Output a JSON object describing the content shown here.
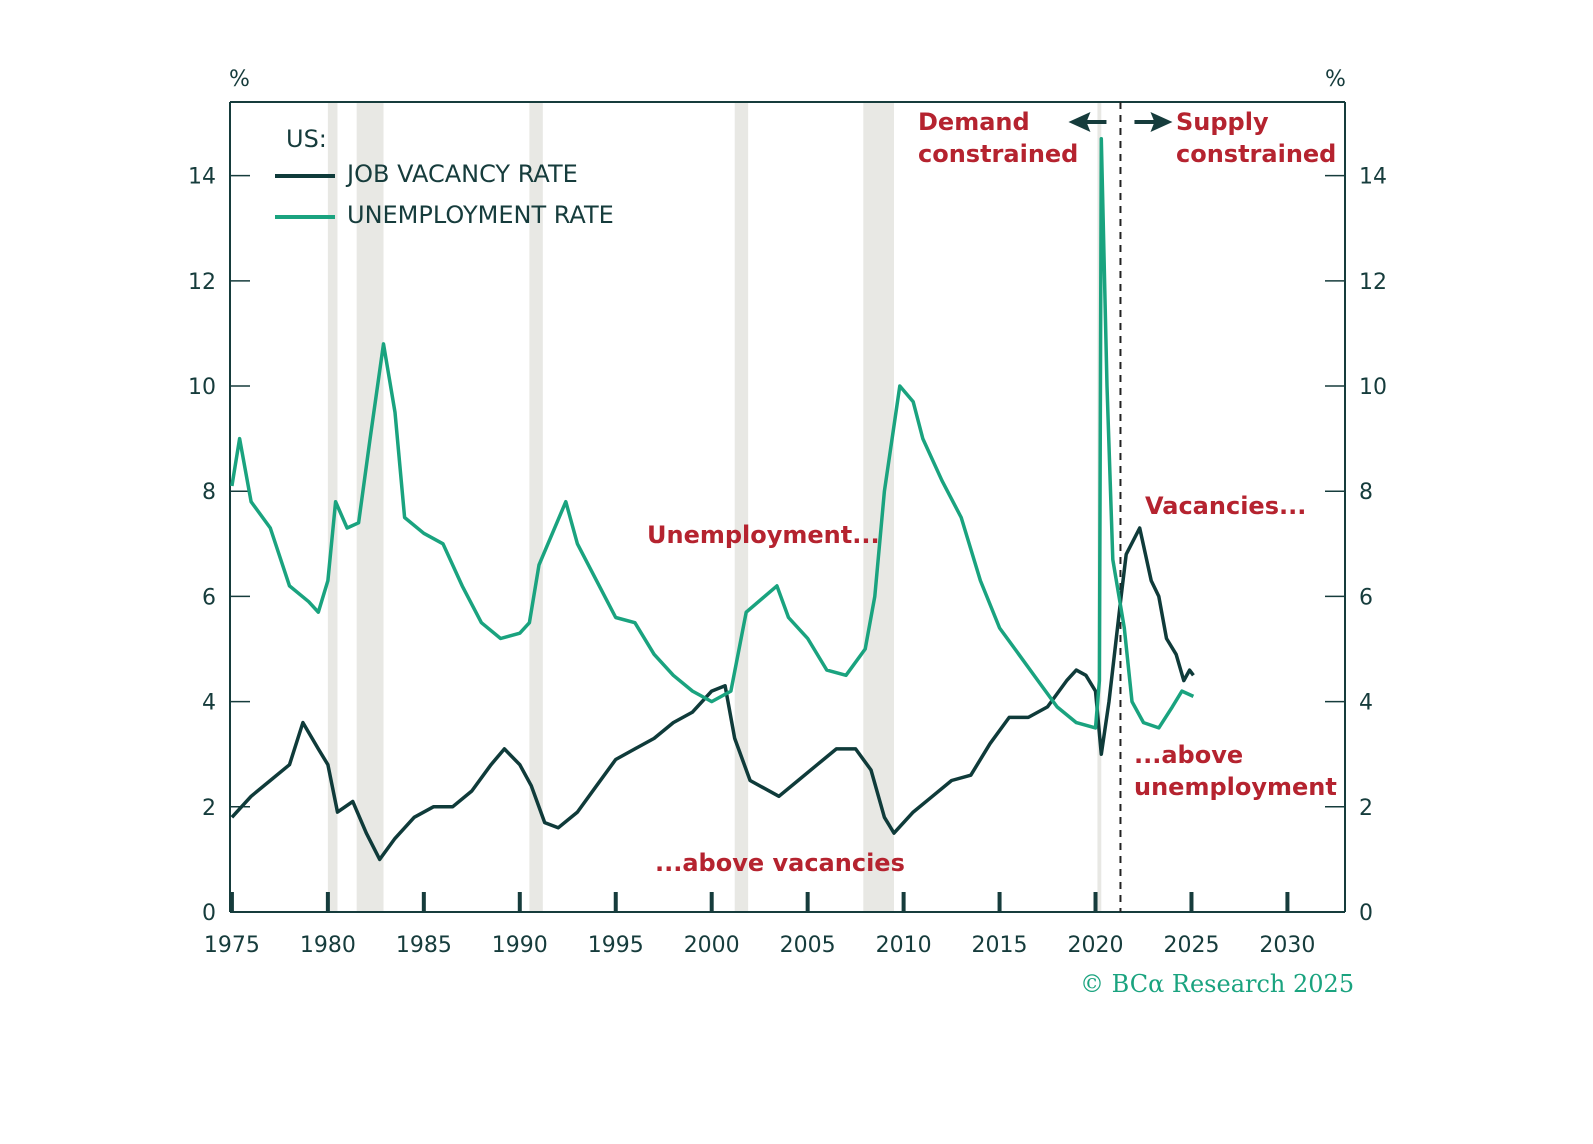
{
  "chart_data": {
    "type": "line",
    "title": "",
    "left_axis_unit": "%",
    "right_axis_unit": "%",
    "xlim": [
      1974.9,
      2033.0
    ],
    "ylim": [
      0,
      15.4
    ],
    "x_ticks": [
      "1975",
      "1980",
      "1985",
      "1990",
      "1995",
      "2000",
      "2005",
      "2010",
      "2015",
      "2020",
      "2025",
      "2030"
    ],
    "y_ticks": [
      "0",
      "2",
      "4",
      "6",
      "8",
      "10",
      "12",
      "14"
    ],
    "grid": false,
    "legend": {
      "title": "US:",
      "placement": "top-left"
    },
    "colors": {
      "vacancy": "#0f3b3a",
      "unemployment": "#1aa37f",
      "annotation": "#b5232f",
      "recession_shading": "#e8e8e4",
      "axis": "#163c3c"
    },
    "recessions": [
      [
        1980.0,
        1980.5
      ],
      [
        1981.5,
        1982.9
      ],
      [
        1990.5,
        1991.2
      ],
      [
        2001.2,
        2001.9
      ],
      [
        2007.9,
        2009.5
      ],
      [
        2020.1,
        2020.3
      ]
    ],
    "regime_divider_year": 2021.3,
    "series": [
      {
        "name": "JOB VACANCY RATE",
        "key": "vacancy",
        "x": [
          1975,
          1976,
          1977,
          1978,
          1978.7,
          1979.5,
          1980,
          1980.5,
          1981.3,
          1982,
          1982.7,
          1983.5,
          1984.5,
          1985.5,
          1986.5,
          1987.5,
          1988.5,
          1989.2,
          1990,
          1990.6,
          1991.3,
          1992,
          1993,
          1994,
          1995,
          1996,
          1997,
          1998,
          1999,
          2000,
          2000.7,
          2001.2,
          2002,
          2003.5,
          2004.5,
          2005.5,
          2006.5,
          2007.5,
          2008.3,
          2009,
          2009.5,
          2010.5,
          2011.5,
          2012.5,
          2013.5,
          2014.5,
          2015.5,
          2016.5,
          2017.5,
          2018.5,
          2019,
          2019.5,
          2020.0,
          2020.3,
          2020.7,
          2021.3,
          2021.6,
          2022.3,
          2022.9,
          2023.3,
          2023.7,
          2024.2,
          2024.6,
          2024.9,
          2025.1
        ],
        "y": [
          1.8,
          2.2,
          2.5,
          2.8,
          3.6,
          3.1,
          2.8,
          1.9,
          2.1,
          1.5,
          1.0,
          1.4,
          1.8,
          2.0,
          2.0,
          2.3,
          2.8,
          3.1,
          2.8,
          2.4,
          1.7,
          1.6,
          1.9,
          2.4,
          2.9,
          3.1,
          3.3,
          3.6,
          3.8,
          4.2,
          4.3,
          3.3,
          2.5,
          2.2,
          2.5,
          2.8,
          3.1,
          3.1,
          2.7,
          1.8,
          1.5,
          1.9,
          2.2,
          2.5,
          2.6,
          3.2,
          3.7,
          3.7,
          3.9,
          4.4,
          4.6,
          4.5,
          4.2,
          3.0,
          4.0,
          5.9,
          6.8,
          7.3,
          6.3,
          6.0,
          5.2,
          4.9,
          4.4,
          4.6,
          4.5
        ]
      },
      {
        "name": "UNEMPLOYMENT RATE",
        "key": "unemployment",
        "x": [
          1975,
          1975.4,
          1976,
          1977,
          1978,
          1979,
          1979.5,
          1980,
          1980.4,
          1981,
          1981.6,
          1982.2,
          1982.9,
          1983.5,
          1984,
          1985,
          1986,
          1987,
          1988,
          1989,
          1990,
          1990.5,
          1991,
          1992.4,
          1993,
          1994,
          1995,
          1996,
          1997,
          1998,
          1999,
          2000,
          2001,
          2001.8,
          2003.4,
          2004,
          2005,
          2006,
          2007,
          2008,
          2008.5,
          2009,
          2009.8,
          2010.5,
          2011,
          2012,
          2013,
          2014,
          2015,
          2016,
          2017,
          2018,
          2019,
          2020.0,
          2020.2,
          2020.3,
          2020.6,
          2020.9,
          2021.5,
          2021.9,
          2022.5,
          2023.3,
          2024,
          2024.5,
          2025.1
        ],
        "y": [
          8.1,
          9.0,
          7.8,
          7.3,
          6.2,
          5.9,
          5.7,
          6.3,
          7.8,
          7.3,
          7.4,
          9.0,
          10.8,
          9.5,
          7.5,
          7.2,
          7.0,
          6.2,
          5.5,
          5.2,
          5.3,
          5.5,
          6.6,
          7.8,
          7.0,
          6.3,
          5.6,
          5.5,
          4.9,
          4.5,
          4.2,
          4.0,
          4.2,
          5.7,
          6.2,
          5.6,
          5.2,
          4.6,
          4.5,
          5.0,
          6.0,
          8.0,
          10.0,
          9.7,
          9.0,
          8.2,
          7.5,
          6.3,
          5.4,
          4.9,
          4.4,
          3.9,
          3.6,
          3.5,
          4.4,
          14.7,
          10.0,
          6.7,
          5.4,
          4.0,
          3.6,
          3.5,
          3.9,
          4.2,
          4.1
        ]
      }
    ],
    "annotations": {
      "demand": [
        "Demand",
        "constrained"
      ],
      "supply": [
        "Supply",
        "constrained"
      ],
      "unemployment": "Unemployment...",
      "above_vacancies": "...above vacancies",
      "vacancies": "Vacancies...",
      "above_unemployment": [
        "...above",
        "unemployment"
      ]
    },
    "credit": "© BCα Research 2025"
  }
}
